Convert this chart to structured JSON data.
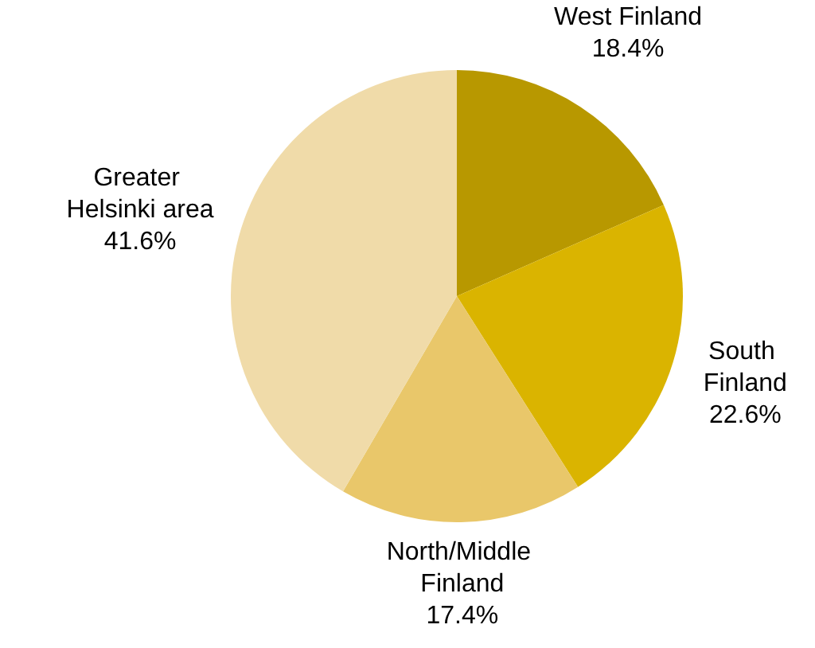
{
  "chart_data": {
    "type": "pie",
    "categories": [
      "West Finland",
      "South Finland",
      "North/Middle Finland",
      "Greater Helsinki area"
    ],
    "values": [
      18.4,
      22.6,
      17.4,
      41.6
    ],
    "colors": [
      "#b89800",
      "#dab400",
      "#e9c76a",
      "#f0dba9"
    ],
    "value_labels": [
      "18.4%",
      "22.6%",
      "17.4%",
      "41.6%"
    ],
    "legend": false
  }
}
